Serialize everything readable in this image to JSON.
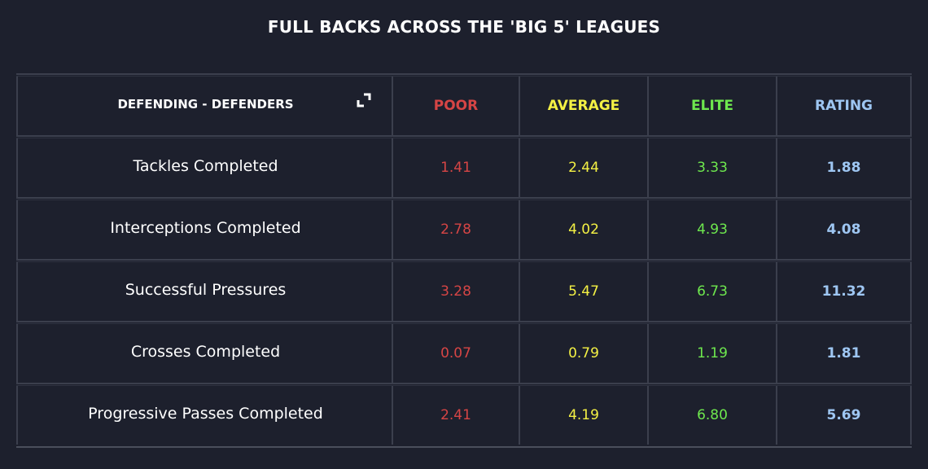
{
  "title": "FULL BACKS ACROSS THE 'BIG 5' LEAGUES",
  "header": {
    "label": "DEFENDING - DEFENDERS",
    "poor": "POOR",
    "average": "AVERAGE",
    "elite": "ELITE",
    "rating": "RATING",
    "expand_icon": "expand-icon"
  },
  "colors": {
    "poor": "#d64545",
    "average": "#f4f144",
    "elite": "#6ee84e",
    "rating": "#9ec6f2",
    "background": "#1d202d"
  },
  "rows": [
    {
      "label": "Tackles Completed",
      "poor": "1.41",
      "average": "2.44",
      "elite": "3.33",
      "rating": "1.88"
    },
    {
      "label": "Interceptions Completed",
      "poor": "2.78",
      "average": "4.02",
      "elite": "4.93",
      "rating": "4.08"
    },
    {
      "label": "Successful Pressures",
      "poor": "3.28",
      "average": "5.47",
      "elite": "6.73",
      "rating": "11.32"
    },
    {
      "label": "Crosses Completed",
      "poor": "0.07",
      "average": "0.79",
      "elite": "1.19",
      "rating": "1.81"
    },
    {
      "label": "Progressive Passes Completed",
      "poor": "2.41",
      "average": "4.19",
      "elite": "6.80",
      "rating": "5.69"
    }
  ]
}
